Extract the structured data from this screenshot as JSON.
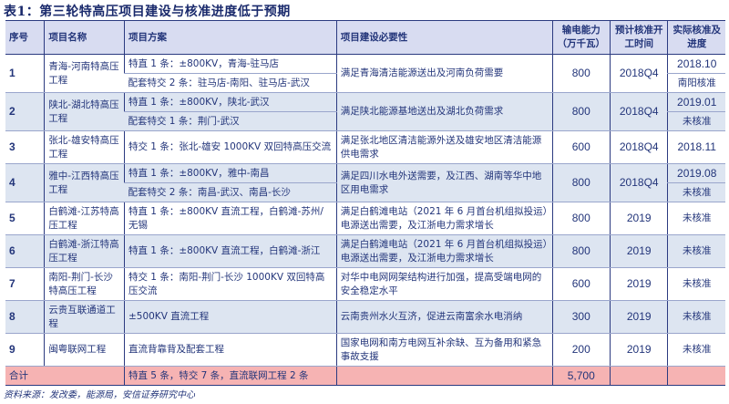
{
  "title": "表1：第三轮特高压项目建设与核准进度低于预期",
  "headers": [
    "序号",
    "项目名称",
    "项目方案",
    "项目建设必要性",
    "输电能力（万千瓦）",
    "预计核准开工时间",
    "实际核准及进度"
  ],
  "rows": [
    {
      "seq": "1",
      "name": "青海-河南特高压工程",
      "plan": [
        "特直 1 条：±800KV，青海-驻马店",
        "配套特交 2 条：驻马店-南阳、驻马店-武汉"
      ],
      "need": "满足青海清洁能源送出及河南负荷需要",
      "cap": "800",
      "plan_time": "2018Q4",
      "actual": [
        "2018.10",
        "南阳核准"
      ]
    },
    {
      "seq": "2",
      "name": "陕北-湖北特高压工程",
      "plan": [
        "特直 1 条：±800KV，陕北-武汉",
        "配套特交 1 条：荆门-武汉"
      ],
      "need": "满足陕北能源基地送出及湖北负荷需求",
      "cap": "800",
      "plan_time": "2018Q4",
      "actual": [
        "2019.01",
        "未核准"
      ]
    },
    {
      "seq": "3",
      "name": "张北-雄安特高压工程",
      "plan": [
        "特交 1 条：张北-雄安 1000KV 双回特高压交流"
      ],
      "need": "满足张北地区清洁能源外送及雄安地区清洁能源供电需求",
      "cap": "600",
      "plan_time": "2018Q4",
      "actual": [
        "2018.11"
      ]
    },
    {
      "seq": "4",
      "name": "雅中-江西特高压工程",
      "plan": [
        "特直 1 条：±800KV，雅中-南昌",
        "配套特交 2 条：南昌-武汉、南昌-长沙"
      ],
      "need": "满足四川水电外送需要，及江西、湖南等华中地区用电需求",
      "cap": "800",
      "plan_time": "2018Q4",
      "actual": [
        "2019.08",
        "未核准"
      ]
    },
    {
      "seq": "5",
      "name": "白鹤滩-江苏特高压工程",
      "plan": [
        "特直 1 条：±800KV 直流工程，白鹤滩-苏州/无锡"
      ],
      "need": "满足白鹤滩电站（2021 年 6 月首台机组拟投运）电源送出需要，及江浙电力需求增长",
      "cap": "800",
      "plan_time": "2019",
      "actual": [
        "未核准"
      ]
    },
    {
      "seq": "6",
      "name": "白鹤滩-浙江特高压工程",
      "plan": [
        "特直 1 条：±800KV 直流工程，白鹤滩-浙江"
      ],
      "need": "满足白鹤滩电站（2021 年 6 月首台机组拟投运）电源送出需要，及江浙电力需求增长",
      "cap": "800",
      "plan_time": "2019",
      "actual": [
        "未核准"
      ]
    },
    {
      "seq": "7",
      "name": "南阳-荆门-长沙特高压工程",
      "plan": [
        "特交 1 条：南阳-荆门-长沙 1000KV 双回特高压交流"
      ],
      "need": "对华中电网网架结构进行加强，提高受端电网的安全稳定水平",
      "cap": "600",
      "plan_time": "2019",
      "actual": [
        "未核准"
      ]
    },
    {
      "seq": "8",
      "name": "云贵互联通道工程",
      "plan": [
        "±500KV 直流工程"
      ],
      "need": "云南贵州水火互济，促进云南富余水电消纳",
      "cap": "300",
      "plan_time": "2019",
      "actual": [
        "未核准"
      ]
    },
    {
      "seq": "9",
      "name": "闽粤联网工程",
      "plan": [
        "直流背靠背及配套工程"
      ],
      "need": "国家电网和南方电网互补余缺、互为备用和紧急事故支援",
      "cap": "200",
      "plan_time": "2019",
      "actual": [
        "未核准"
      ]
    }
  ],
  "total": {
    "label": "合计",
    "plan": "特直 5 条，特交 7 条，直流联网工程 2 条",
    "cap": "5,700"
  },
  "source": "资料来源：发改委，能源局，安信证券研究中心",
  "colors": {
    "header_bg": "#d8dcf1",
    "alt_row_bg": "#dde5f1",
    "total_bg": "#f6b3b3",
    "text": "#23357a"
  }
}
